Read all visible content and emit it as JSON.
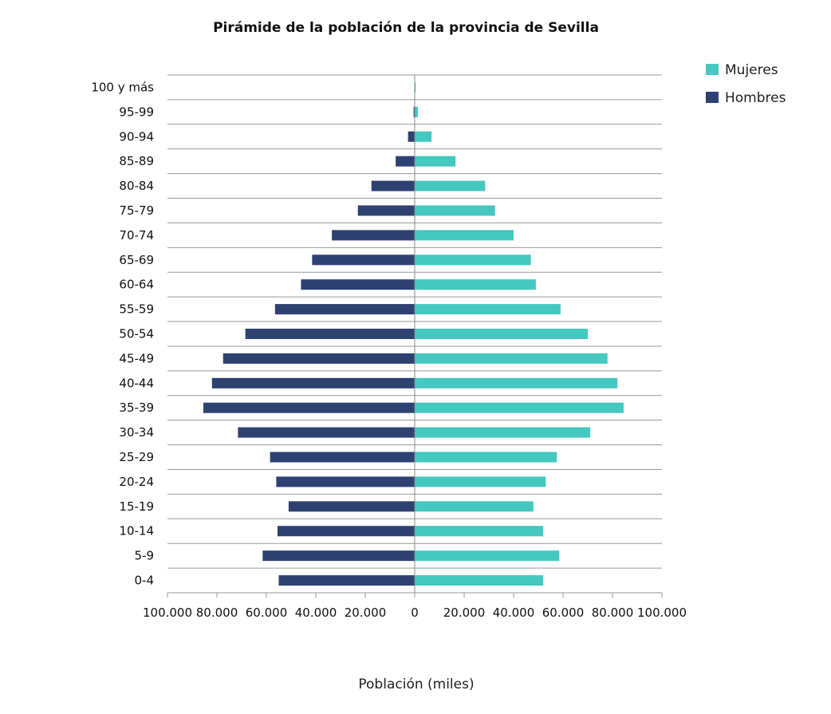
{
  "chart_data": {
    "type": "bar",
    "orientation": "horizontal",
    "layout": "population-pyramid",
    "title": "Pirámide de la población de la provincia de Sevilla",
    "xlabel": "Población (miles)",
    "ylabel": "",
    "categories": [
      "100 y más",
      "95-99",
      "90-94",
      "85-89",
      "80-84",
      "75-79",
      "70-74",
      "65-69",
      "60-64",
      "55-59",
      "50-54",
      "45-49",
      "40-44",
      "35-39",
      "30-34",
      "25-29",
      "20-24",
      "15-19",
      "10-14",
      "5-9",
      "0-4"
    ],
    "series": [
      {
        "name": "Mujeres",
        "color": "#45c8c0",
        "side": "right",
        "values": [
          400,
          1300,
          6800,
          16500,
          28500,
          32500,
          40000,
          47000,
          49000,
          59000,
          70000,
          78000,
          82000,
          84500,
          71000,
          57500,
          53000,
          48000,
          52000,
          58500,
          52000
        ]
      },
      {
        "name": "Hombres",
        "color": "#2e4272",
        "side": "left",
        "values": [
          150,
          450,
          2700,
          7700,
          17500,
          23000,
          33500,
          41500,
          46000,
          56500,
          68500,
          77500,
          82000,
          85500,
          71500,
          58500,
          56000,
          51000,
          55500,
          61500,
          55000
        ]
      }
    ],
    "xlim": [
      -100000,
      100000
    ],
    "xticks": [
      -100000,
      -80000,
      -60000,
      -40000,
      -20000,
      0,
      20000,
      40000,
      60000,
      80000,
      100000
    ],
    "xtick_labels": [
      "100.000",
      "80.000",
      "60.000",
      "40.000",
      "20.000",
      "0",
      "20.000",
      "40.000",
      "60.000",
      "80.000",
      "100.000"
    ],
    "grid": "horizontal",
    "legend_position": "top-right"
  }
}
